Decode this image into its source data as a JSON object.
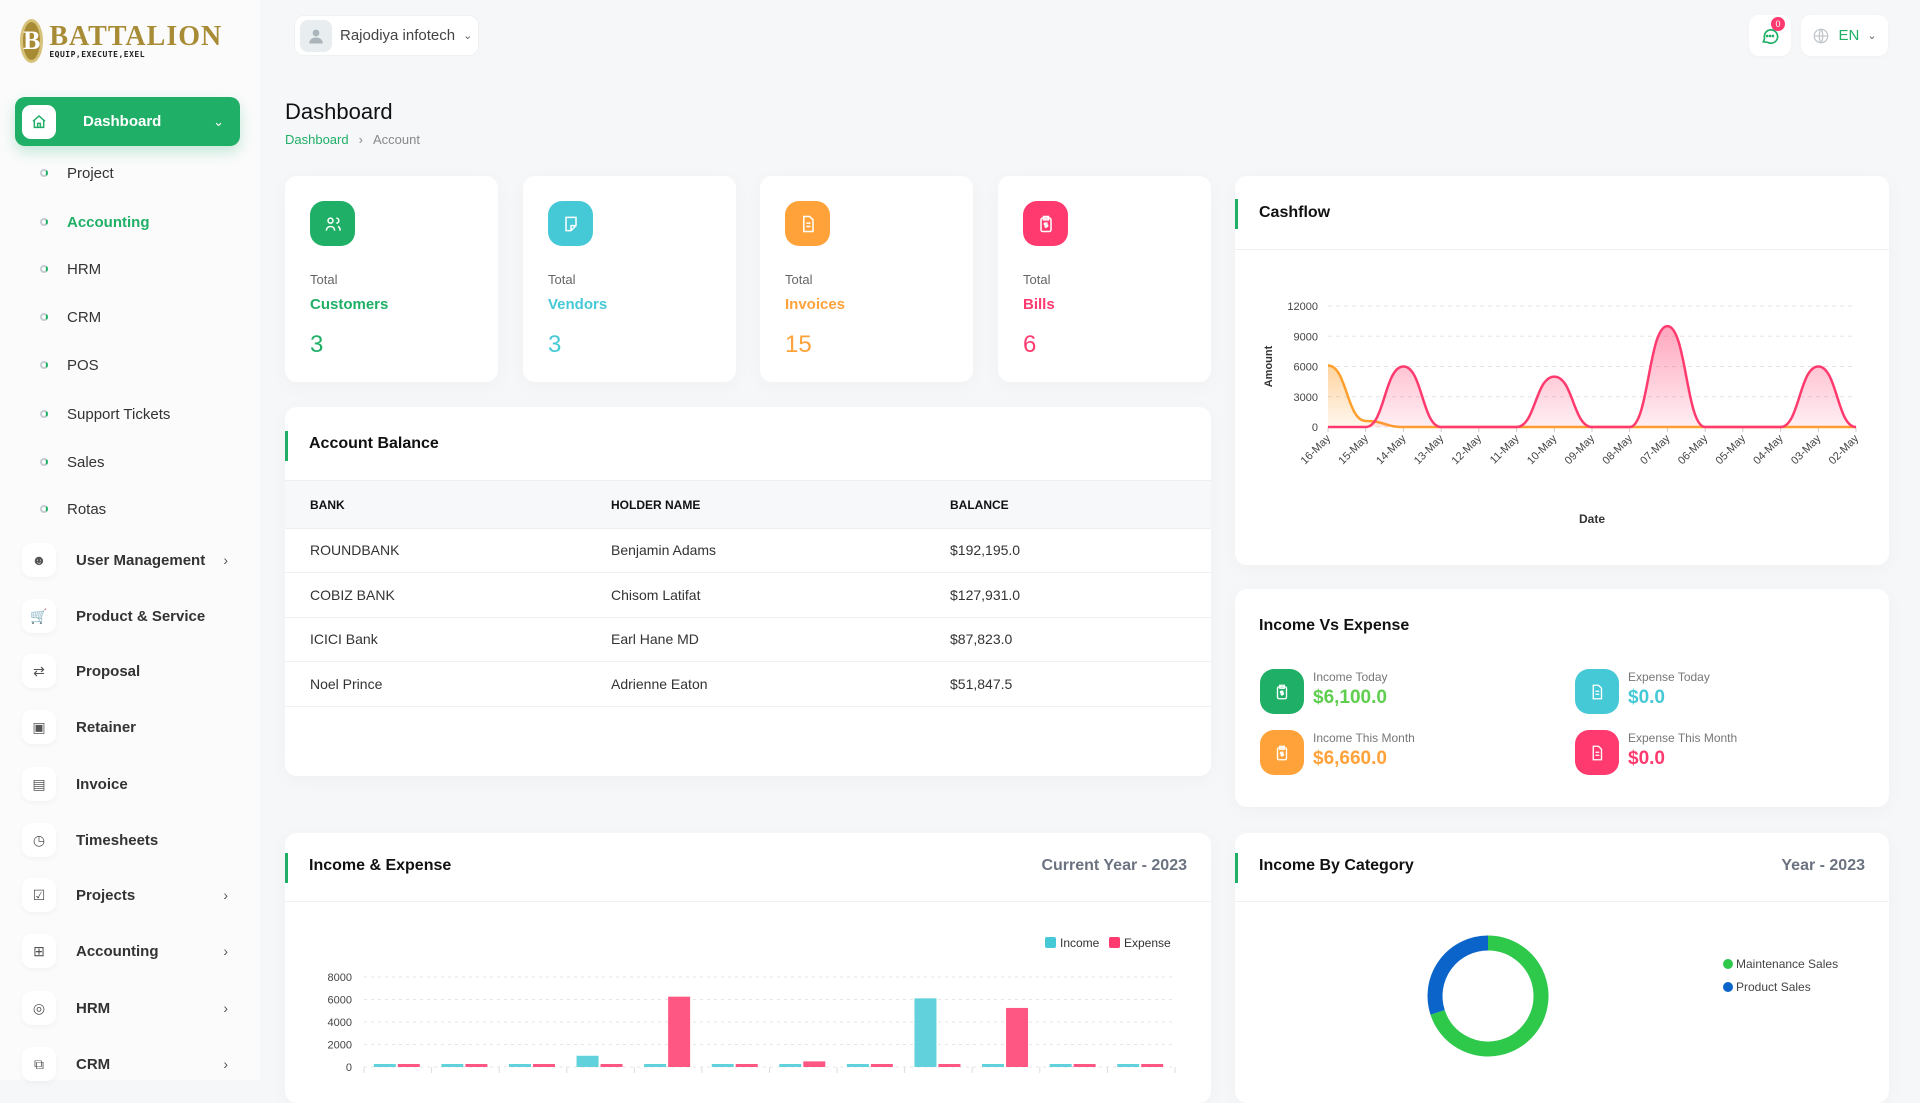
{
  "brand": {
    "name": "BATTALION",
    "tagline": "EQUIP,EXECUTE,EXEL",
    "initial": "B"
  },
  "header": {
    "company": "Rajodiya infotech",
    "notification_count": "0",
    "language": "EN"
  },
  "sidebar": {
    "dashboard_label": "Dashboard",
    "sub_items": [
      {
        "label": "Project"
      },
      {
        "label": "Accounting",
        "active": true
      },
      {
        "label": "HRM"
      },
      {
        "label": "CRM"
      },
      {
        "label": "POS"
      },
      {
        "label": "Support Tickets"
      },
      {
        "label": "Sales"
      },
      {
        "label": "Rotas"
      }
    ],
    "items": [
      {
        "label": "User Management",
        "icon": "users-icon",
        "has_children": true
      },
      {
        "label": "Product & Service",
        "icon": "cart-icon",
        "has_children": false
      },
      {
        "label": "Proposal",
        "icon": "exchange-icon",
        "has_children": false
      },
      {
        "label": "Retainer",
        "icon": "save-icon",
        "has_children": false
      },
      {
        "label": "Invoice",
        "icon": "file-invoice-icon",
        "has_children": false
      },
      {
        "label": "Timesheets",
        "icon": "clock-icon",
        "has_children": false
      },
      {
        "label": "Projects",
        "icon": "checkbox-icon",
        "has_children": true
      },
      {
        "label": "Accounting",
        "icon": "apps-icon",
        "has_children": true
      },
      {
        "label": "HRM",
        "icon": "focus-icon",
        "has_children": true
      },
      {
        "label": "CRM",
        "icon": "layers-icon",
        "has_children": true
      }
    ]
  },
  "page": {
    "title": "Dashboard",
    "breadcrumb": [
      "Dashboard",
      "Account"
    ]
  },
  "stats": [
    {
      "total": "Total",
      "label": "Customers",
      "value": "3",
      "color": "#1faf66",
      "icon": "users-icon"
    },
    {
      "total": "Total",
      "label": "Vendors",
      "value": "3",
      "color": "#45c9d6",
      "icon": "note-icon"
    },
    {
      "total": "Total",
      "label": "Invoices",
      "value": "15",
      "color": "#ffa23a",
      "icon": "file-invoice-icon"
    },
    {
      "total": "Total",
      "label": "Bills",
      "value": "6",
      "color": "#ff3a6e",
      "icon": "clipboard-dollar-icon"
    }
  ],
  "account_balance": {
    "title": "Account Balance",
    "columns": [
      "BANK",
      "HOLDER NAME",
      "BALANCE"
    ],
    "rows": [
      [
        "ROUNDBANK",
        "Benjamin Adams",
        "$192,195.0"
      ],
      [
        "COBIZ BANK",
        "Chisom Latifat",
        "$127,931.0"
      ],
      [
        "ICICI Bank",
        "Earl Hane MD",
        "$87,823.0"
      ],
      [
        "Noel Prince",
        "Adrienne Eaton",
        "$51,847.5"
      ]
    ]
  },
  "income_vs_expense": {
    "title": "Income Vs Expense",
    "items": [
      {
        "label": "Income Today",
        "value": "$6,100.0",
        "color": "#1faf66",
        "value_color": "#5fce4f"
      },
      {
        "label": "Expense Today",
        "value": "$0.0",
        "color": "#45c9d6",
        "value_color": "#45c9d6"
      },
      {
        "label": "Income This Month",
        "value": "$6,660.0",
        "color": "#ffa23a",
        "value_color": "#ffa23a"
      },
      {
        "label": "Expense This Month",
        "value": "$0.0",
        "color": "#ff3a6e",
        "value_color": "#ff3a6e"
      }
    ]
  },
  "chart_data": [
    {
      "id": "cashflow",
      "title": "Cashflow",
      "type": "area",
      "xlabel": "Date",
      "ylabel": "Amount",
      "x": [
        "16-May",
        "15-May",
        "14-May",
        "13-May",
        "12-May",
        "11-May",
        "10-May",
        "09-May",
        "08-May",
        "07-May",
        "06-May",
        "05-May",
        "04-May",
        "03-May",
        "02-May"
      ],
      "ylim": [
        0,
        12000
      ],
      "yticks": [
        0,
        3000,
        6000,
        9000,
        12000
      ],
      "grid": true,
      "series": [
        {
          "color": "#ff9f2e",
          "values": [
            6100,
            600,
            0,
            0,
            0,
            0,
            0,
            0,
            0,
            0,
            0,
            0,
            0,
            0,
            0
          ]
        },
        {
          "color": "#ff3a6e",
          "values": [
            0,
            0,
            6000,
            0,
            0,
            0,
            5000,
            0,
            0,
            10000,
            0,
            0,
            0,
            6000,
            0
          ]
        }
      ]
    },
    {
      "id": "income_expense",
      "title": "Income & Expense",
      "subtitle": "Current Year - 2023",
      "type": "bar",
      "ylim": [
        0,
        8000
      ],
      "yticks": [
        0,
        2000,
        4000,
        6000,
        8000
      ],
      "grid": true,
      "legend": "top-right",
      "series": [
        {
          "name": "Income",
          "color": "#45c9d6",
          "values": [
            200,
            0,
            0,
            1000,
            0,
            0,
            200,
            0,
            6100,
            0,
            0,
            0
          ]
        },
        {
          "name": "Expense",
          "color": "#ff3a6e",
          "values": [
            0,
            0,
            0,
            0,
            6250,
            0,
            500,
            0,
            0,
            5250,
            0,
            0
          ]
        }
      ]
    },
    {
      "id": "income_category",
      "title": "Income By Category",
      "subtitle": "Year - 2023",
      "type": "pie",
      "donut": true,
      "legend": "right",
      "slices": [
        {
          "name": "Maintenance Sales",
          "value": 70,
          "color": "#2ec84a"
        },
        {
          "name": "Product Sales",
          "value": 30,
          "color": "#0b64c9"
        }
      ]
    }
  ]
}
